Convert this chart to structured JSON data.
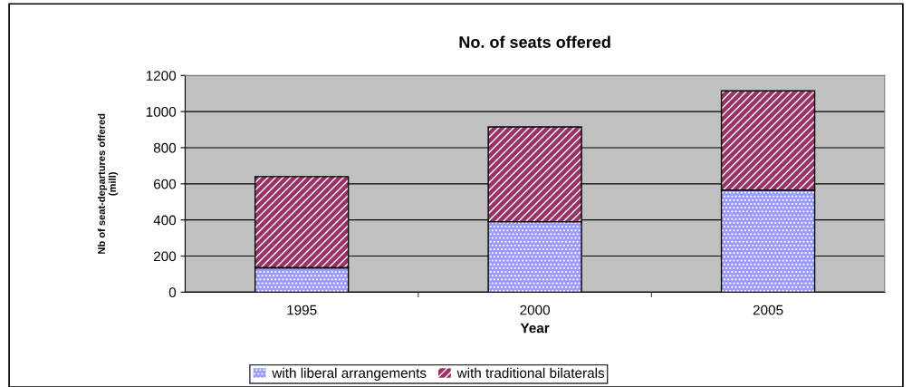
{
  "chart_data": {
    "type": "bar",
    "title": "No. of seats offered",
    "xlabel": "Year",
    "ylabel": "Nb of seat-departures offered\n(mill)",
    "categories": [
      "1995",
      "2000",
      "2005"
    ],
    "stacked": true,
    "series": [
      {
        "name": "with liberal arrangements",
        "color": "#9999ff",
        "values": [
          135,
          390,
          565
        ]
      },
      {
        "name": "with traditional bilaterals",
        "color": "#993366",
        "values": [
          505,
          525,
          550
        ]
      }
    ],
    "ylim": [
      0,
      1200
    ],
    "yticks": [
      0,
      200,
      400,
      600,
      800,
      1000,
      1200
    ],
    "grid": "y",
    "legend": "bottom"
  }
}
